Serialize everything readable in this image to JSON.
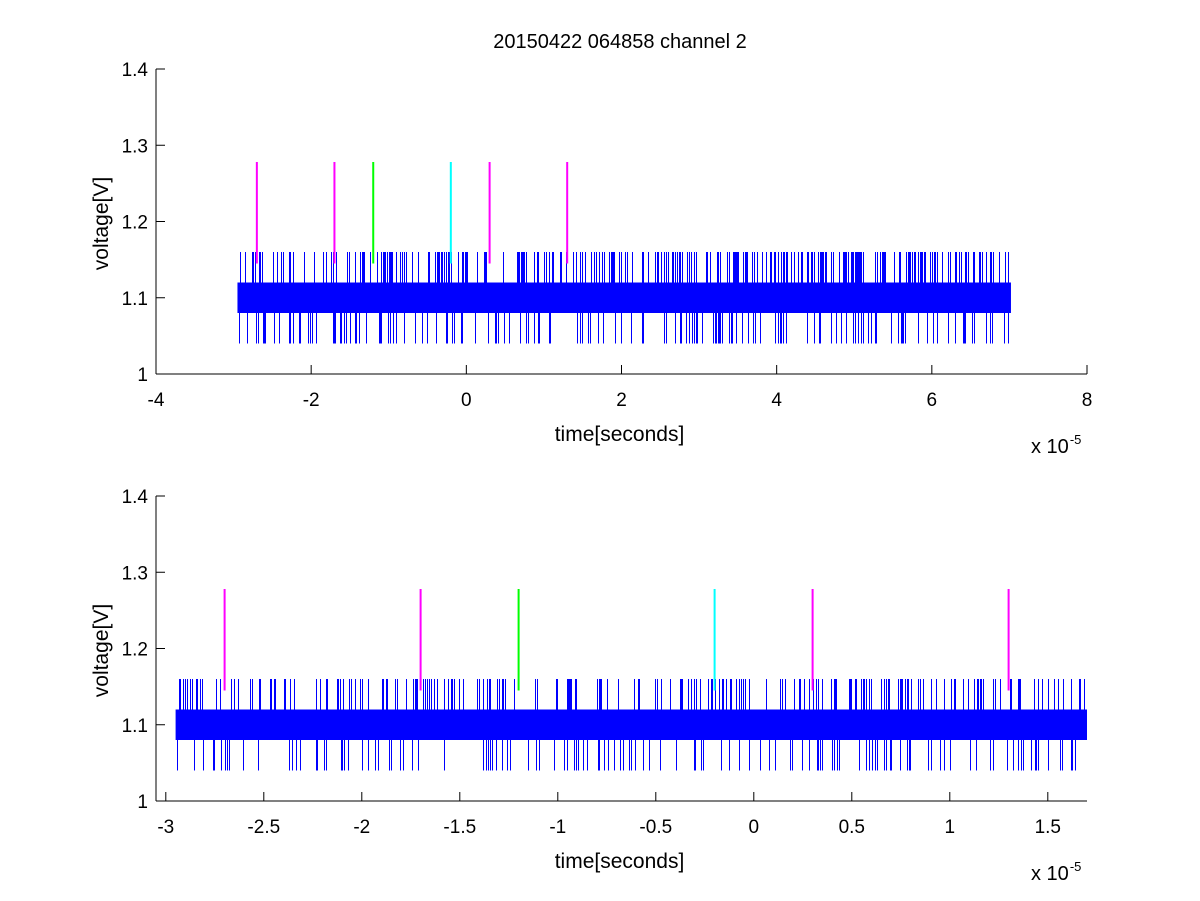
{
  "figure": {
    "title": "20150422 064858 channel 2"
  },
  "chart_data": [
    {
      "type": "line",
      "title": "20150422 064858 channel 2",
      "xlabel": "time[seconds]",
      "ylabel": "voltage[V]",
      "x_multiplier_label": {
        "prefix": "x 10",
        "exponent": "-5"
      },
      "xlim": [
        -4,
        8
      ],
      "ylim": [
        1,
        1.4
      ],
      "x_ticks": [
        -4,
        -2,
        0,
        2,
        4,
        6,
        8
      ],
      "x_tick_labels": [
        "-4",
        "-2",
        "0",
        "2",
        "4",
        "6",
        "8"
      ],
      "y_ticks": [
        1,
        1.1,
        1.2,
        1.3,
        1.4
      ],
      "y_tick_labels": [
        "1",
        "1.1",
        "1.2",
        "1.3",
        "1.4"
      ],
      "grid": false,
      "signal": {
        "x_start": -2.95,
        "x_end": 7.02,
        "band_low": 1.08,
        "band_high": 1.12,
        "spike_high": 1.16,
        "spike_low": 1.04,
        "color": "#0000ff"
      },
      "markers": [
        {
          "x": -2.7,
          "y_low": 1.145,
          "y_high": 1.278,
          "color": "#ff00ff"
        },
        {
          "x": -1.7,
          "y_low": 1.145,
          "y_high": 1.278,
          "color": "#ff00ff"
        },
        {
          "x": -1.2,
          "y_low": 1.145,
          "y_high": 1.278,
          "color": "#00ff00"
        },
        {
          "x": -0.2,
          "y_low": 1.145,
          "y_high": 1.278,
          "color": "#00ffff"
        },
        {
          "x": 0.3,
          "y_low": 1.145,
          "y_high": 1.278,
          "color": "#ff00ff"
        },
        {
          "x": 1.3,
          "y_low": 1.145,
          "y_high": 1.278,
          "color": "#ff00ff"
        }
      ]
    },
    {
      "type": "line",
      "title": "",
      "xlabel": "time[seconds]",
      "ylabel": "voltage[V]",
      "x_multiplier_label": {
        "prefix": "x 10",
        "exponent": "-5"
      },
      "xlim": [
        -3.05,
        1.7
      ],
      "ylim": [
        1,
        1.4
      ],
      "x_ticks": [
        -3,
        -2.5,
        -2,
        -1.5,
        -1,
        -0.5,
        0,
        0.5,
        1,
        1.5
      ],
      "x_tick_labels": [
        "-3",
        "-2.5",
        "-2",
        "-1.5",
        "-1",
        "-0.5",
        "0",
        "0.5",
        "1",
        "1.5"
      ],
      "y_ticks": [
        1,
        1.1,
        1.2,
        1.3,
        1.4
      ],
      "y_tick_labels": [
        "1",
        "1.1",
        "1.2",
        "1.3",
        "1.4"
      ],
      "grid": false,
      "signal": {
        "x_start": -2.95,
        "x_end": 1.7,
        "band_low": 1.08,
        "band_high": 1.12,
        "spike_high": 1.16,
        "spike_low": 1.04,
        "color": "#0000ff"
      },
      "markers": [
        {
          "x": -2.7,
          "y_low": 1.145,
          "y_high": 1.278,
          "color": "#ff00ff"
        },
        {
          "x": -1.7,
          "y_low": 1.145,
          "y_high": 1.278,
          "color": "#ff00ff"
        },
        {
          "x": -1.2,
          "y_low": 1.145,
          "y_high": 1.278,
          "color": "#00ff00"
        },
        {
          "x": -0.2,
          "y_low": 1.145,
          "y_high": 1.278,
          "color": "#00ffff"
        },
        {
          "x": 0.3,
          "y_low": 1.145,
          "y_high": 1.278,
          "color": "#ff00ff"
        },
        {
          "x": 1.3,
          "y_low": 1.145,
          "y_high": 1.278,
          "color": "#ff00ff"
        }
      ]
    }
  ]
}
